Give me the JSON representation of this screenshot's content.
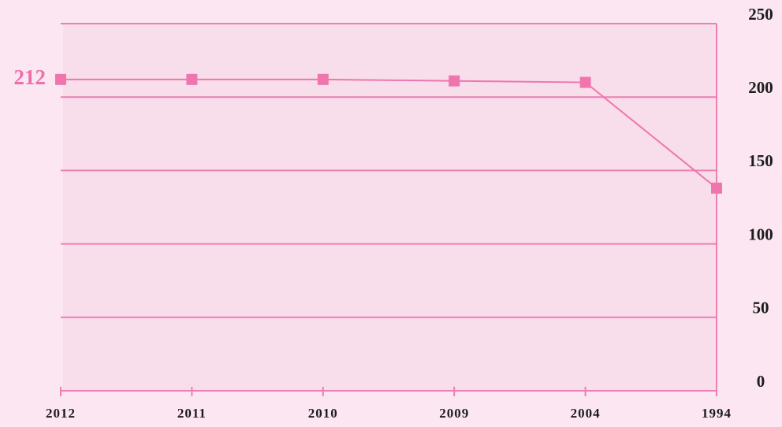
{
  "chart_data": {
    "type": "line",
    "categories": [
      "2012",
      "2011",
      "2010",
      "2009",
      "2004",
      "1994"
    ],
    "values": [
      212,
      212,
      212,
      211,
      210,
      138
    ],
    "color": "#ef76ad",
    "ylim": [
      0,
      250
    ],
    "yticks": [
      0,
      50,
      100,
      150,
      200,
      250
    ],
    "grid": true,
    "y_axis_side": "right"
  }
}
